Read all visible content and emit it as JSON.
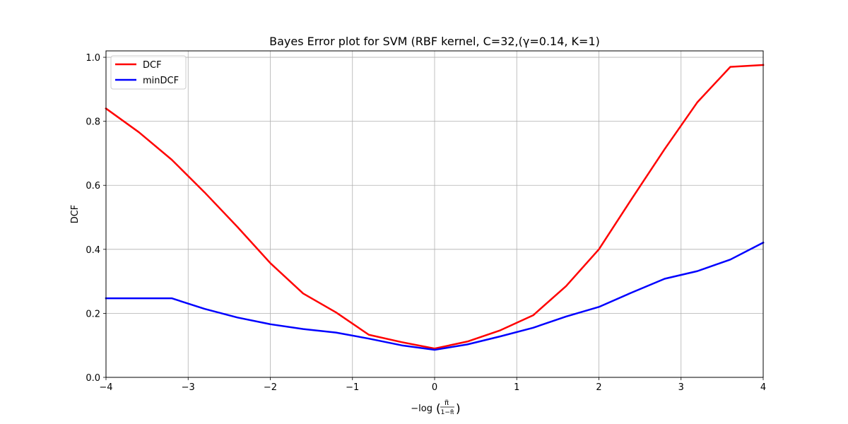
{
  "chart_data": {
    "type": "line",
    "title": "Bayes Error plot for SVM (RBF kernel, C=32,(γ=0.14, K=1)",
    "xlabel": "−log",
    "xlabel_fraction": {
      "numerator": "π̃",
      "denominator": "1−π̃"
    },
    "ylabel": "DCF",
    "xlim": [
      -4,
      4
    ],
    "ylim": [
      0,
      1.02
    ],
    "xticks": [
      -4,
      -3,
      -2,
      -1,
      0,
      1,
      2,
      3,
      4
    ],
    "xtick_labels": [
      "−4",
      "−3",
      "−2",
      "−1",
      "0",
      "1",
      "2",
      "3",
      "4"
    ],
    "yticks": [
      0.0,
      0.2,
      0.4,
      0.6,
      0.8,
      1.0
    ],
    "ytick_labels": [
      "0.0",
      "0.2",
      "0.4",
      "0.6",
      "0.8",
      "1.0"
    ],
    "grid": true,
    "legend_position": "top-left",
    "x": [
      -4.0,
      -3.6,
      -3.2,
      -2.8,
      -2.4,
      -2.0,
      -1.6,
      -1.2,
      -0.8,
      -0.4,
      0.0,
      0.4,
      0.8,
      1.2,
      1.6,
      2.0,
      2.4,
      2.8,
      3.2,
      3.6,
      4.0
    ],
    "series": [
      {
        "name": "DCF",
        "color": "#ff0000",
        "values": [
          0.84,
          0.766,
          0.68,
          0.578,
          0.47,
          0.357,
          0.262,
          0.203,
          0.133,
          0.11,
          0.09,
          0.112,
          0.147,
          0.194,
          0.285,
          0.4,
          0.558,
          0.713,
          0.86,
          0.97,
          0.976
        ]
      },
      {
        "name": "minDCF",
        "color": "#0000ff",
        "values": [
          0.247,
          0.247,
          0.247,
          0.214,
          0.187,
          0.166,
          0.151,
          0.14,
          0.121,
          0.1,
          0.086,
          0.103,
          0.128,
          0.155,
          0.19,
          0.22,
          0.265,
          0.308,
          0.332,
          0.368,
          0.421
        ]
      }
    ]
  }
}
